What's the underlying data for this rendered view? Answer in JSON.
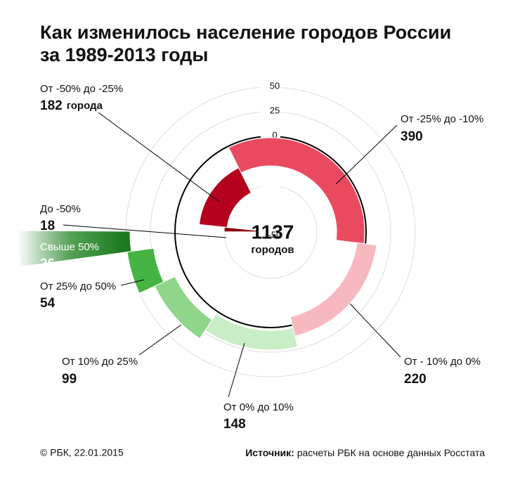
{
  "title": [
    "Как изменилось население городов России",
    "за 1989-2013 годы"
  ],
  "chart_data": {
    "type": "radial",
    "total": 1137,
    "total_label": "городов",
    "rticks": [
      -50,
      0,
      25,
      50
    ],
    "segments": [
      {
        "label": "От -50% до -25%",
        "value": 182,
        "unit": "города",
        "color": "#b5001e"
      },
      {
        "label": "От -25% до -10%",
        "value": 390,
        "color": "#ea4a60"
      },
      {
        "label": "От - 10% до 0%",
        "value": 220,
        "color": "#f7b8bf"
      },
      {
        "label": "От 0% до 10%",
        "value": 148,
        "color": "#c9edc6"
      },
      {
        "label": "От 10% до 25%",
        "value": 99,
        "color": "#8fd68b"
      },
      {
        "label": "От 25% до 50%",
        "value": 54,
        "color": "#45b443"
      },
      {
        "label": "Свыше 50%",
        "value": 26,
        "color": "#1b7a1e"
      },
      {
        "label": "До -50%",
        "value": 18,
        "color": "#8a0010"
      }
    ]
  },
  "footer": {
    "left": "© РБК, 22.01.2015",
    "source_key": "Источник:",
    "source_text": " расчеты РБК на основе данных Росстата"
  }
}
